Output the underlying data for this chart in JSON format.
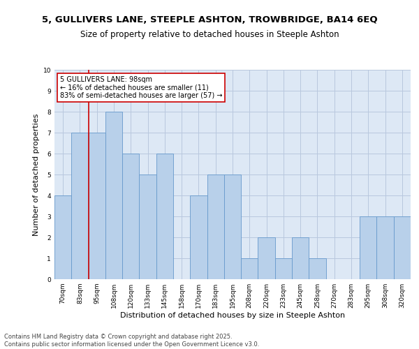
{
  "title_line1": "5, GULLIVERS LANE, STEEPLE ASHTON, TROWBRIDGE, BA14 6EQ",
  "title_line2": "Size of property relative to detached houses in Steeple Ashton",
  "xlabel": "Distribution of detached houses by size in Steeple Ashton",
  "ylabel": "Number of detached properties",
  "categories": [
    "70sqm",
    "83sqm",
    "95sqm",
    "108sqm",
    "120sqm",
    "133sqm",
    "145sqm",
    "158sqm",
    "170sqm",
    "183sqm",
    "195sqm",
    "208sqm",
    "220sqm",
    "233sqm",
    "245sqm",
    "258sqm",
    "270sqm",
    "283sqm",
    "295sqm",
    "308sqm",
    "320sqm"
  ],
  "values": [
    4,
    7,
    7,
    8,
    6,
    5,
    6,
    0,
    4,
    5,
    5,
    1,
    2,
    1,
    2,
    1,
    0,
    0,
    3,
    3,
    3
  ],
  "bar_color": "#b8d0ea",
  "bar_edge_color": "#6699cc",
  "bg_color": "#dde8f5",
  "grid_color": "#b8c8de",
  "annotation_text": "5 GULLIVERS LANE: 98sqm\n← 16% of detached houses are smaller (11)\n83% of semi-detached houses are larger (57) →",
  "annotation_box_color": "#ffffff",
  "annotation_box_edge": "#cc0000",
  "red_line_index": 2,
  "ylim": [
    0,
    10
  ],
  "yticks": [
    0,
    1,
    2,
    3,
    4,
    5,
    6,
    7,
    8,
    9,
    10
  ],
  "footer": "Contains HM Land Registry data © Crown copyright and database right 2025.\nContains public sector information licensed under the Open Government Licence v3.0.",
  "title_fontsize": 9.5,
  "subtitle_fontsize": 8.5,
  "axis_label_fontsize": 8,
  "tick_fontsize": 6.5,
  "annotation_fontsize": 7,
  "footer_fontsize": 6
}
